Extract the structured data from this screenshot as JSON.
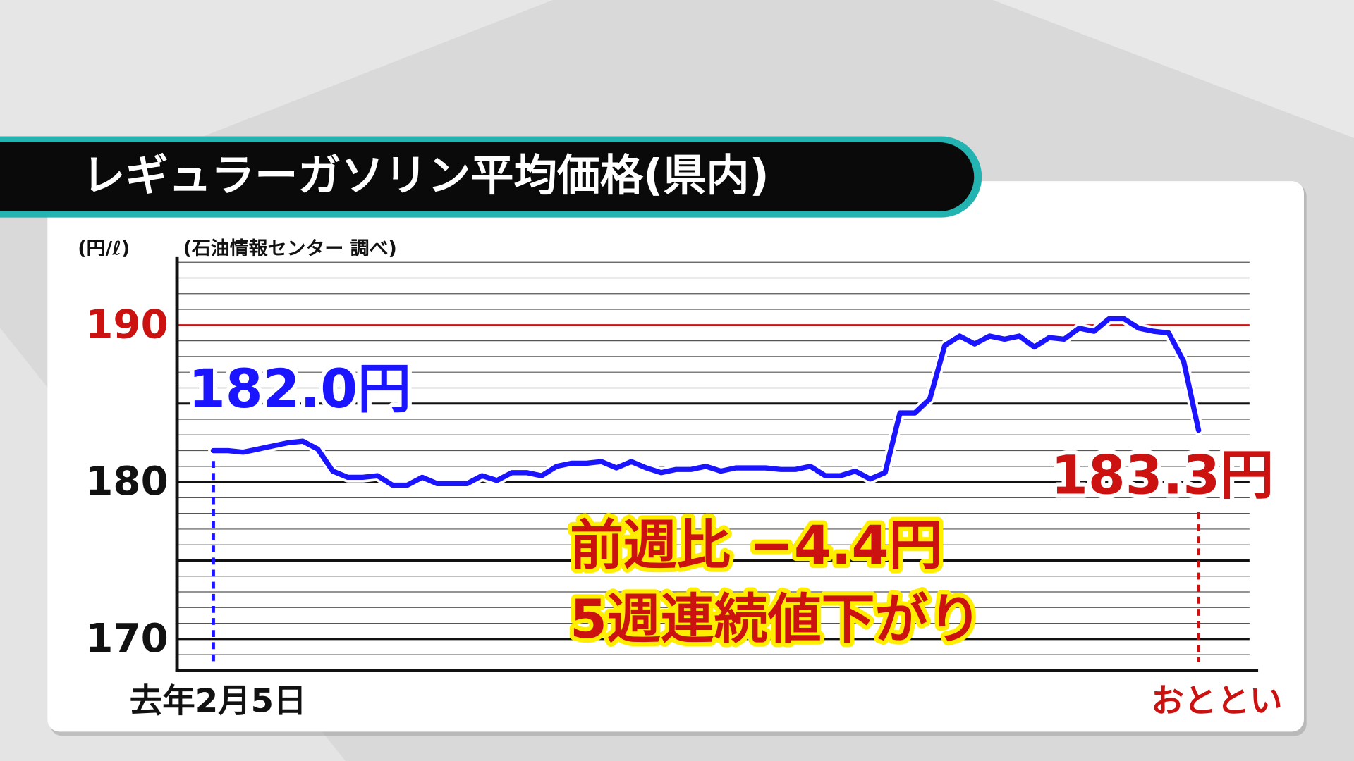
{
  "chart_data": {
    "type": "line",
    "title": "レギュラーガソリン平均価格(県内)",
    "y_label": "(円/ℓ)",
    "source": "(石油情報センター 調べ)",
    "annotations": [
      "前週比 −4.4円",
      "5週連続値下がり"
    ],
    "categories": [
      "去年2月5日",
      null,
      null,
      null,
      null,
      null,
      null,
      null,
      null,
      null,
      null,
      null,
      null,
      null,
      null,
      null,
      null,
      null,
      null,
      null,
      null,
      null,
      null,
      null,
      null,
      null,
      null,
      null,
      null,
      null,
      null,
      null,
      null,
      null,
      null,
      null,
      null,
      null,
      null,
      null,
      null,
      null,
      null,
      null,
      null,
      null,
      null,
      null,
      null,
      null,
      null,
      null,
      null,
      null,
      null,
      null,
      null,
      null,
      null,
      null,
      null,
      null,
      null,
      null,
      null,
      null,
      "おととい"
    ],
    "series": [
      {
        "color": "#1a14ff",
        "values": [
          182.0,
          182.0,
          181.9,
          182.1,
          182.3,
          182.5,
          182.6,
          182.1,
          180.7,
          180.3,
          180.3,
          180.4,
          179.8,
          179.8,
          180.3,
          179.9,
          179.9,
          179.9,
          180.4,
          180.1,
          180.6,
          180.6,
          180.4,
          181.0,
          181.2,
          181.2,
          181.3,
          180.9,
          181.3,
          180.9,
          180.6,
          180.8,
          180.8,
          181.0,
          180.7,
          180.9,
          180.9,
          180.9,
          180.8,
          180.8,
          181.0,
          180.4,
          180.4,
          180.7,
          180.2,
          180.6,
          184.4,
          184.4,
          185.3,
          188.7,
          189.3,
          188.8,
          189.3,
          189.1,
          189.3,
          188.6,
          189.2,
          189.1,
          189.8,
          189.6,
          190.4,
          190.4,
          189.8,
          189.6,
          189.5,
          187.7,
          183.3
        ],
        "value_labels": [
          "182.0円",
          null,
          null,
          null,
          null,
          null,
          null,
          null,
          null,
          null,
          null,
          null,
          null,
          null,
          null,
          null,
          null,
          null,
          null,
          null,
          null,
          null,
          null,
          null,
          null,
          null,
          null,
          null,
          null,
          null,
          null,
          null,
          null,
          null,
          null,
          null,
          null,
          null,
          null,
          null,
          null,
          null,
          null,
          null,
          null,
          null,
          null,
          null,
          null,
          null,
          null,
          null,
          null,
          null,
          null,
          null,
          null,
          null,
          null,
          null,
          null,
          null,
          null,
          null,
          null,
          null,
          "183.3円"
        ],
        "value_label_colors": [
          "#1a14ff",
          "#cc1111"
        ]
      }
    ],
    "ylim": [
      168,
      194
    ],
    "yticks": [
      170,
      180,
      190
    ],
    "ytick_colors": [
      "#111111",
      "#111111",
      "#cc1111"
    ],
    "minor_grid": [
      169,
      171,
      172,
      173,
      174,
      176,
      177,
      178,
      179,
      181,
      182,
      183,
      184,
      186,
      187,
      188,
      189,
      191,
      192,
      193,
      194
    ],
    "major_grid": [
      170,
      175,
      180,
      185
    ],
    "ref_line": {
      "value": 190,
      "color": "#cc1111"
    },
    "x_label_colors": [
      "#111111",
      "#cc1111"
    ]
  }
}
